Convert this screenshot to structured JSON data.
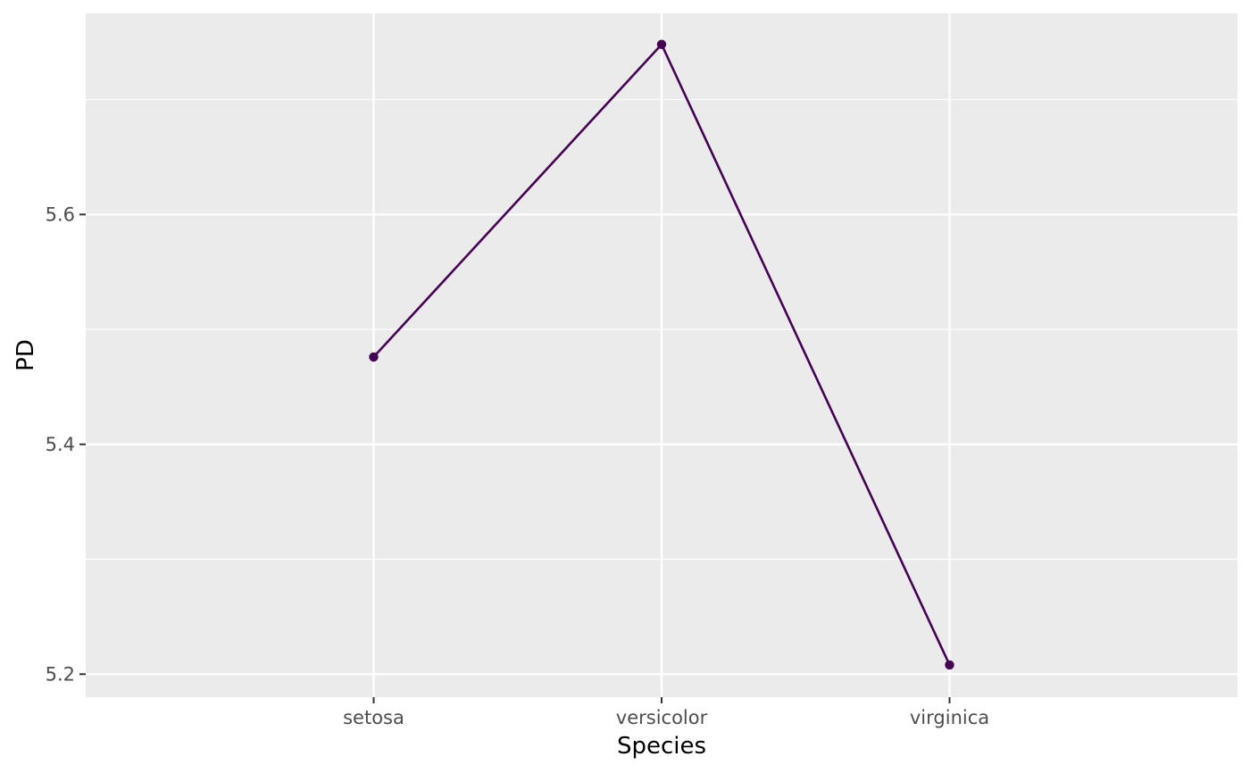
{
  "chart_data": {
    "type": "line",
    "categories": [
      "setosa",
      "versicolor",
      "virginica"
    ],
    "series": [
      {
        "values": [
          5.476,
          5.748,
          5.208
        ]
      }
    ],
    "xlabel": "Species",
    "ylabel": "PD",
    "ylim": [
      5.18,
      5.775
    ],
    "y_ticks": [
      5.2,
      5.4,
      5.6
    ],
    "y_tick_labels": [
      "5.2",
      "5.4",
      "5.6"
    ],
    "y_minor_ticks": [
      5.3,
      5.5,
      5.7
    ],
    "grid": true,
    "legend": "none",
    "colors": {
      "panel_background": "#ebebeb",
      "grid": "#ffffff",
      "series": "#440154",
      "tick_text": "#4d4d4d",
      "tick_mark": "#333333",
      "title_text": "#000000"
    }
  }
}
